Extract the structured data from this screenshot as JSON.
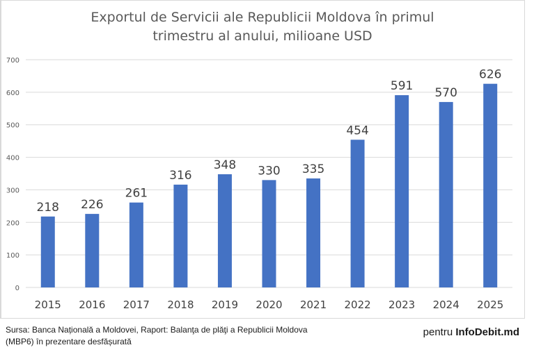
{
  "chart_data": {
    "type": "bar",
    "title_line1": "Exportul de Servicii ale Republicii Moldova în primul",
    "title_line2": "trimestru al anului, milioane USD",
    "categories": [
      "2015",
      "2016",
      "2017",
      "2018",
      "2019",
      "2020",
      "2021",
      "2022",
      "2023",
      "2024",
      "2025"
    ],
    "values": [
      218,
      226,
      261,
      316,
      348,
      330,
      335,
      454,
      591,
      570,
      626
    ],
    "ylim": [
      0,
      700
    ],
    "yticks": [
      0,
      100,
      200,
      300,
      400,
      500,
      600,
      700
    ],
    "xlabel": "",
    "ylabel": "",
    "grid": true,
    "legend": "none",
    "bar_color": "#4472c4",
    "data_labels": true
  },
  "footer": {
    "source_line1": "Sursa: Banca Națională a Moldovei, Raport: Balanţa de plăţi a Republicii Moldova",
    "source_line2": "(MBP6) în prezentare desfășurată",
    "credit_prefix": "pentru ",
    "credit_brand": "InfoDebit.md"
  }
}
